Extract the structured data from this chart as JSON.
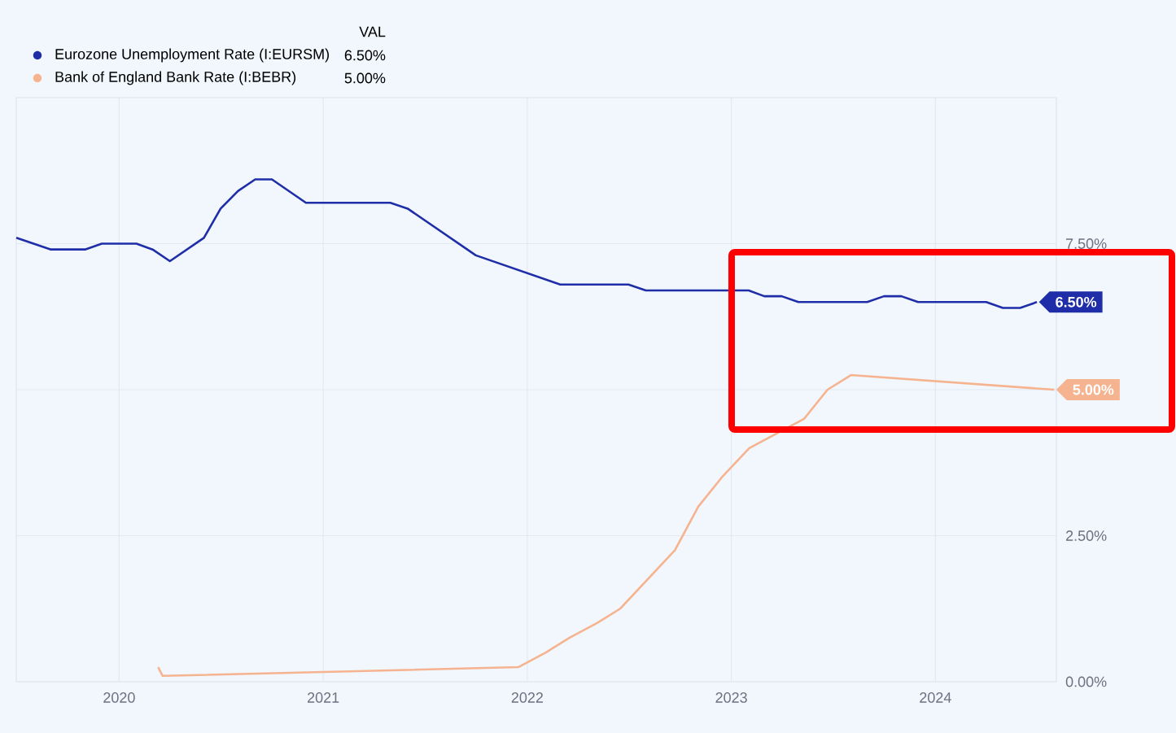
{
  "chart_data": {
    "type": "line",
    "legend": "top left",
    "legend_title": "VAL",
    "grid": true,
    "line_style": "solid",
    "xlim": [
      "2019-07-01",
      "2024-08-05"
    ],
    "xticks": [
      {
        "value": "2020-01-01",
        "label": "2020"
      },
      {
        "value": "2021-01-01",
        "label": "2021"
      },
      {
        "value": "2022-01-01",
        "label": "2022"
      },
      {
        "value": "2023-01-01",
        "label": "2023"
      },
      {
        "value": "2024-01-01",
        "label": "2024"
      }
    ],
    "ylim": [
      0,
      10
    ],
    "yticks": [
      {
        "value": 0,
        "label": "0.00%"
      },
      {
        "value": 2.5,
        "label": "2.50%"
      },
      {
        "value": 5,
        "label": null
      },
      {
        "value": 7.5,
        "label": "7.50%"
      }
    ],
    "series": [
      {
        "name": "Eurozone Unemployment Rate (I:EURSM)",
        "color": "#1f2ea8",
        "x": [
          "2019-07",
          "2019-09",
          "2019-11",
          "2019-12",
          "2020-02",
          "2020-03",
          "2020-04",
          "2020-06",
          "2020-07",
          "2020-08",
          "2020-09",
          "2020-10",
          "2020-12",
          "2021-05",
          "2021-06",
          "2021-10",
          "2022-03",
          "2022-07",
          "2022-08",
          "2023-02",
          "2023-03",
          "2023-04",
          "2023-05",
          "2023-09",
          "2023-10",
          "2023-11",
          "2023-12",
          "2024-04",
          "2024-05",
          "2024-06",
          "2024-07"
        ],
        "values": [
          7.6,
          7.4,
          7.4,
          7.5,
          7.5,
          7.4,
          7.2,
          7.6,
          8.1,
          8.4,
          8.6,
          8.6,
          8.2,
          8.2,
          8.1,
          7.3,
          6.8,
          6.8,
          6.7,
          6.7,
          6.6,
          6.6,
          6.5,
          6.5,
          6.6,
          6.6,
          6.5,
          6.5,
          6.4,
          6.4,
          6.5
        ],
        "value_labels": [
          null,
          null,
          null,
          null,
          null,
          null,
          null,
          null,
          null,
          null,
          null,
          null,
          null,
          null,
          null,
          null,
          null,
          null,
          null,
          null,
          null,
          null,
          null,
          null,
          null,
          null,
          null,
          null,
          null,
          null,
          "6.50%"
        ]
      },
      {
        "name": "Bank of England Bank Rate (I:BEBR)",
        "color": "#f6b38f",
        "x": [
          "2020-03-11",
          "2020-03-19",
          "2021-12-16",
          "2022-02-03",
          "2022-03-17",
          "2022-05-05",
          "2022-06-16",
          "2022-09-22",
          "2022-11-03",
          "2022-12-15",
          "2023-02-02",
          "2023-03-23",
          "2023-05-11",
          "2023-06-22",
          "2023-08-03",
          "2024-08-01"
        ],
        "values": [
          0.25,
          0.1,
          0.25,
          0.5,
          0.75,
          1.0,
          1.25,
          2.25,
          3.0,
          3.5,
          4.0,
          4.25,
          4.5,
          5.0,
          5.25,
          5.0
        ],
        "value_labels": [
          null,
          null,
          null,
          null,
          null,
          null,
          null,
          null,
          null,
          null,
          null,
          null,
          null,
          null,
          null,
          "5.00%"
        ]
      }
    ]
  }
}
